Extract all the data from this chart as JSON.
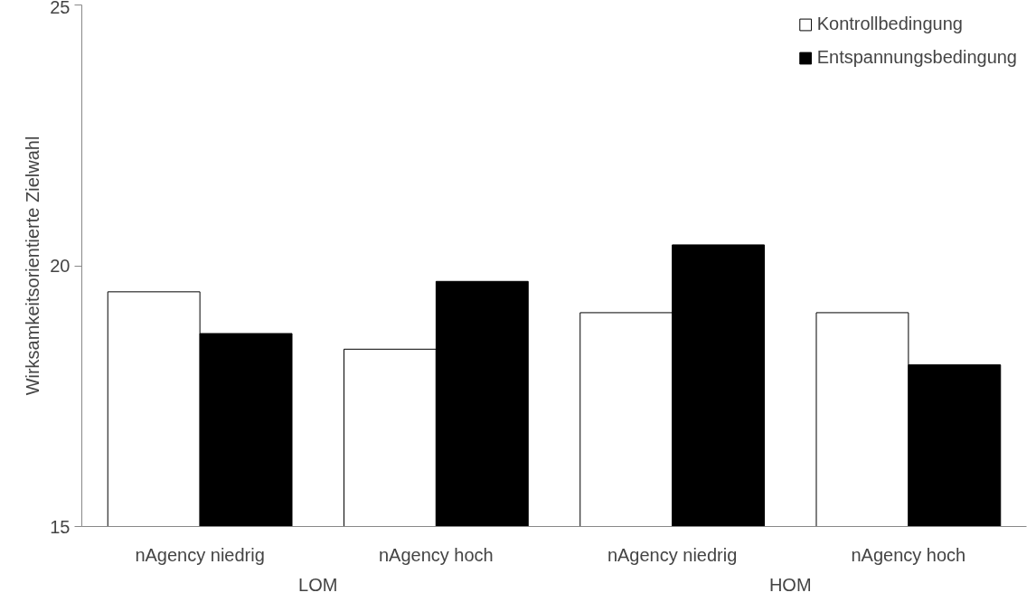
{
  "chart_data": {
    "type": "bar",
    "ylabel": "Wirksamkeitsorientierte Zielwahl",
    "categories": [
      "nAgency niedrig",
      "nAgency hoch",
      "nAgency niedrig",
      "nAgency hoch"
    ],
    "series": [
      {
        "name": "Kontrollbedingung",
        "color": "#ffffff",
        "values": [
          19.5,
          18.4,
          19.1,
          19.1
        ]
      },
      {
        "name": "Entspannungsbedingung",
        "color": "#000000",
        "values": [
          18.7,
          19.7,
          20.4,
          18.1
        ]
      }
    ],
    "annotations": [
      "LOM",
      "HOM"
    ],
    "ylim": [
      15,
      25
    ],
    "yticks": [
      15,
      20,
      25
    ],
    "grid": false,
    "legend": "top right"
  }
}
